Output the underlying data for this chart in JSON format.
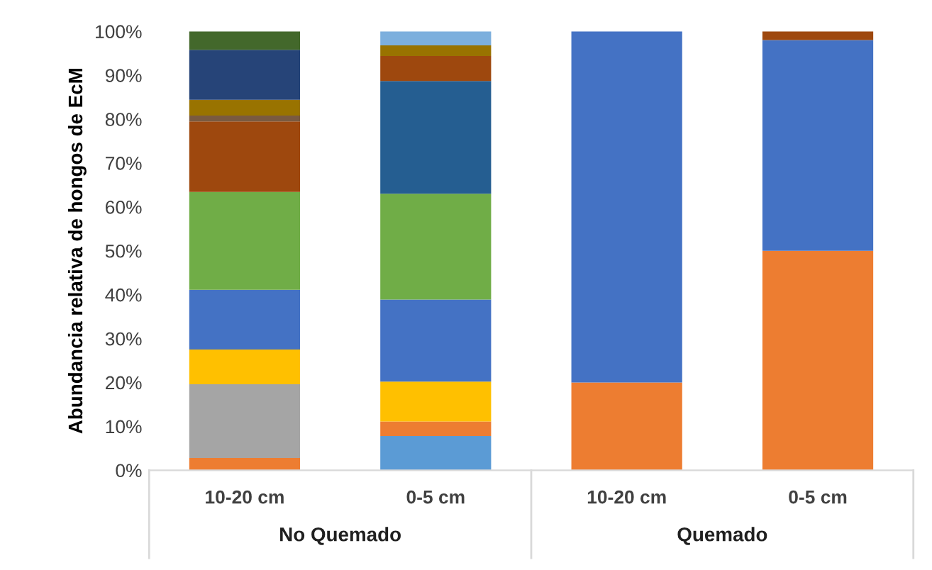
{
  "chart_data": {
    "type": "bar",
    "stacked": true,
    "ylabel": "Abundancia relativa de hongos de EcM",
    "categories": [
      "10-20 cm",
      "0-5 cm",
      "10-20 cm",
      "0-5 cm"
    ],
    "annotations": [
      "No Quemado",
      "Quemado"
    ],
    "ylim": [
      0,
      100
    ],
    "yticks": [
      {
        "value": 0,
        "label": "0%"
      },
      {
        "value": 10,
        "label": "10%"
      },
      {
        "value": 20,
        "label": "20%"
      },
      {
        "value": 30,
        "label": "30%"
      },
      {
        "value": 40,
        "label": "40%"
      },
      {
        "value": 50,
        "label": "50%"
      },
      {
        "value": 60,
        "label": "60%"
      },
      {
        "value": 70,
        "label": "70%"
      },
      {
        "value": 80,
        "label": "80%"
      },
      {
        "value": 90,
        "label": "90%"
      },
      {
        "value": 100,
        "label": "100%"
      }
    ],
    "grid": false,
    "legend": false,
    "series": [
      {
        "color": "#5b9bd5",
        "values": [
          0,
          7.8,
          0,
          0
        ]
      },
      {
        "color": "#ed7d31",
        "values": [
          2.8,
          3.3,
          20,
          50
        ]
      },
      {
        "color": "#a5a5a5",
        "values": [
          16.8,
          0,
          0,
          0
        ]
      },
      {
        "color": "#ffc000",
        "values": [
          7.9,
          9.1,
          0,
          0
        ]
      },
      {
        "color": "#4472c4",
        "values": [
          13.6,
          18.7,
          80,
          48
        ]
      },
      {
        "color": "#70ad47",
        "values": [
          22.3,
          24.1,
          0,
          0
        ]
      },
      {
        "color": "#255e91",
        "values": [
          0,
          25.7,
          0,
          0
        ]
      },
      {
        "color": "#9e480e",
        "values": [
          16.1,
          5.7,
          0,
          2
        ]
      },
      {
        "color": "#7a5a40",
        "values": [
          1.3,
          0,
          0,
          0
        ]
      },
      {
        "color": "#997300",
        "values": [
          3.6,
          2.4,
          0,
          0
        ]
      },
      {
        "color": "#264478",
        "values": [
          11.4,
          0,
          0,
          0
        ]
      },
      {
        "color": "#43682b",
        "values": [
          4.2,
          0,
          0,
          0
        ]
      },
      {
        "color": "#7cafdd",
        "values": [
          0,
          3.2,
          0,
          0
        ]
      }
    ]
  }
}
